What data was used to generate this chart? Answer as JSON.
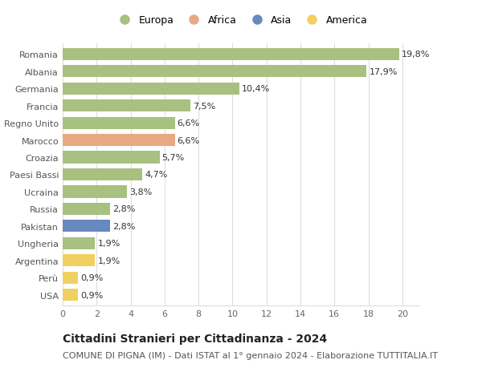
{
  "countries": [
    "Romania",
    "Albania",
    "Germania",
    "Francia",
    "Regno Unito",
    "Marocco",
    "Croazia",
    "Paesi Bassi",
    "Ucraina",
    "Russia",
    "Pakistan",
    "Ungheria",
    "Argentina",
    "Perù",
    "USA"
  ],
  "values": [
    19.8,
    17.9,
    10.4,
    7.5,
    6.6,
    6.6,
    5.7,
    4.7,
    3.8,
    2.8,
    2.8,
    1.9,
    1.9,
    0.9,
    0.9
  ],
  "labels": [
    "19,8%",
    "17,9%",
    "10,4%",
    "7,5%",
    "6,6%",
    "6,6%",
    "5,7%",
    "4,7%",
    "3,8%",
    "2,8%",
    "2,8%",
    "1,9%",
    "1,9%",
    "0,9%",
    "0,9%"
  ],
  "continents": [
    "Europa",
    "Europa",
    "Europa",
    "Europa",
    "Europa",
    "Africa",
    "Europa",
    "Europa",
    "Europa",
    "Europa",
    "Asia",
    "Europa",
    "America",
    "America",
    "America"
  ],
  "colors": {
    "Europa": "#a8c080",
    "Africa": "#e8a882",
    "Asia": "#6888c0",
    "America": "#f0d060"
  },
  "xlim": [
    0,
    21
  ],
  "xticks": [
    0,
    2,
    4,
    6,
    8,
    10,
    12,
    14,
    16,
    18,
    20
  ],
  "title": "Cittadini Stranieri per Cittadinanza - 2024",
  "subtitle": "COMUNE DI PIGNA (IM) - Dati ISTAT al 1° gennaio 2024 - Elaborazione TUTTITALIA.IT",
  "background_color": "#ffffff",
  "grid_color": "#dddddd",
  "bar_height": 0.7,
  "label_fontsize": 8,
  "tick_fontsize": 8,
  "ytick_fontsize": 8,
  "title_fontsize": 10,
  "subtitle_fontsize": 8,
  "legend_labels": [
    "Europa",
    "Africa",
    "Asia",
    "America"
  ]
}
